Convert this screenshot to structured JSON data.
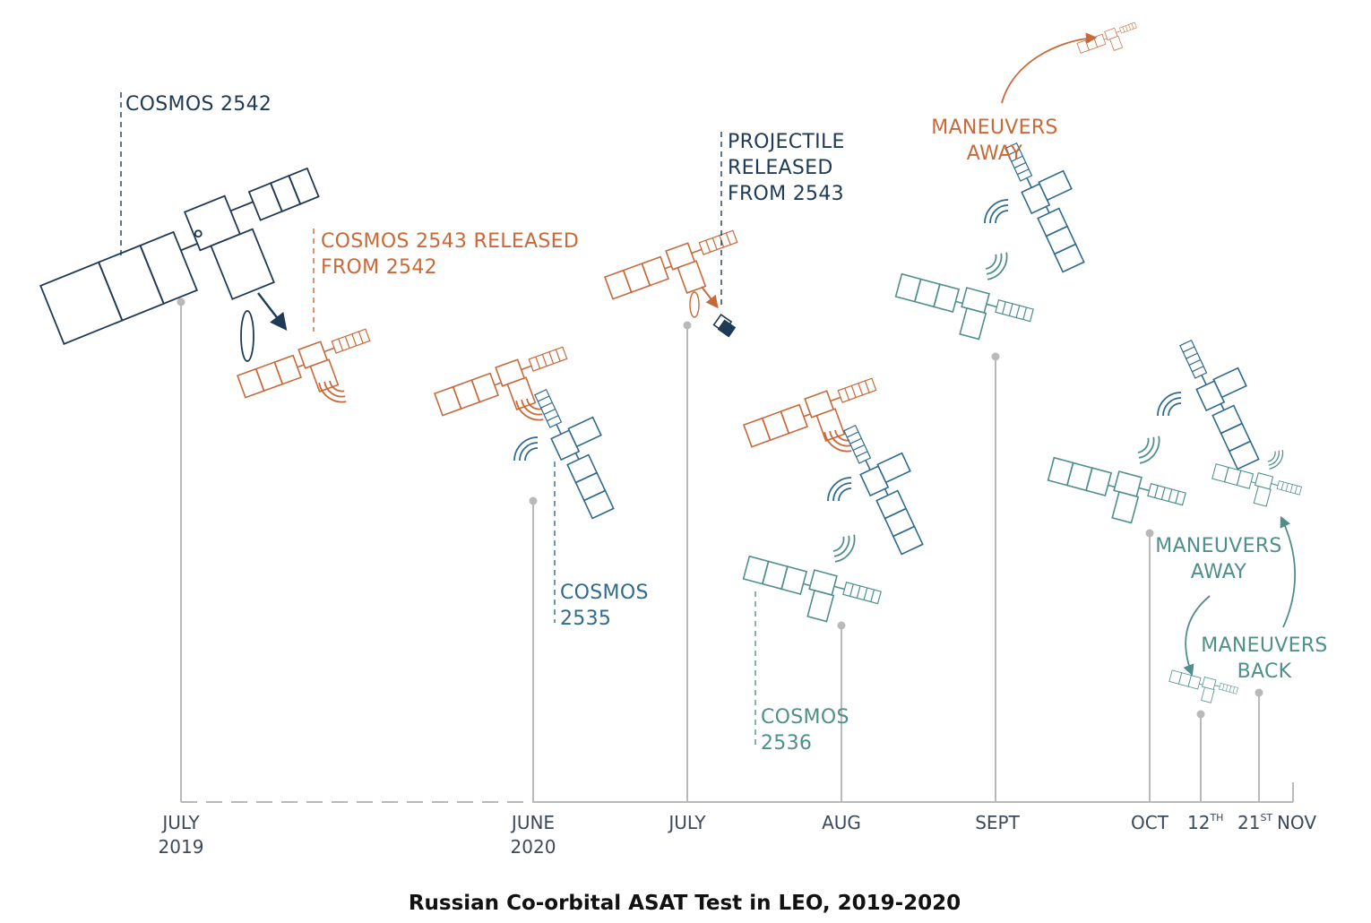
{
  "title": "Russian Co-orbital ASAT Test in LEO, 2019-2020",
  "colors": {
    "navy": "#1f3a55",
    "orange": "#c8693a",
    "blue": "#2f6a8f",
    "teal": "#4f8f8b",
    "axis": "#b9b9b9"
  },
  "axis": {
    "ticks": [
      {
        "line1": "JULY",
        "line2": "2019"
      },
      {
        "line1": "JUNE",
        "line2": "2020"
      },
      {
        "line1": "JULY",
        "line2": ""
      },
      {
        "line1": "AUG",
        "line2": ""
      },
      {
        "line1": "SEPT",
        "line2": ""
      },
      {
        "line1": "OCT",
        "line2": ""
      },
      {
        "line1": "12",
        "sup": "TH"
      },
      {
        "line1": "21",
        "sup": "ST"
      },
      {
        "line1": "NOV",
        "line2": ""
      }
    ]
  },
  "labels": {
    "cosmos2542": "COSMOS 2542",
    "released_1": "COSMOS 2543 RELEASED",
    "released_2": "FROM 2542",
    "projectile_1": "PROJECTILE",
    "projectile_2": "RELEASED",
    "projectile_3": "FROM 2543",
    "cosmos2535_1": "COSMOS",
    "cosmos2535_2": "2535",
    "cosmos2536_1": "COSMOS",
    "cosmos2536_2": "2536",
    "away_orange_1": "MANEUVERS",
    "away_orange_2": "AWAY",
    "away_teal_1": "MANEUVERS",
    "away_teal_2": "AWAY",
    "back_teal_1": "MANEUVERS",
    "back_teal_2": "BACK"
  }
}
